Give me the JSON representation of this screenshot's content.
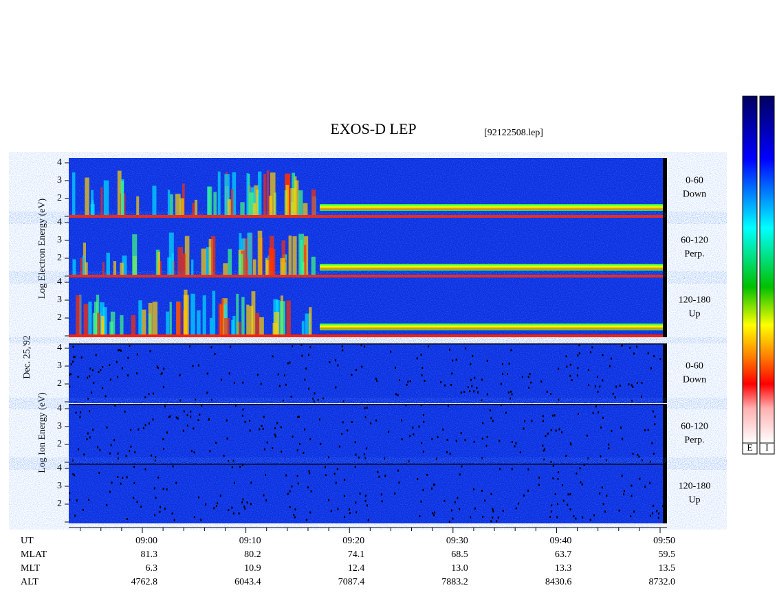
{
  "header": {
    "title": "EXOS-D LEP",
    "file": "[92122508.lep]"
  },
  "date": "Dec. 25,'92",
  "electron": {
    "axis_label": "Log   Electron   Energy  (eV)",
    "panels": [
      {
        "range": "0-60",
        "direction": "Down"
      },
      {
        "range": "60-120",
        "direction": "Perp."
      },
      {
        "range": "120-180",
        "direction": "Up"
      }
    ]
  },
  "ion": {
    "axis_label": "Log   Ion   Energy  (eV)",
    "panels": [
      {
        "range": "0-60",
        "direction": "Down"
      },
      {
        "range": "60-120",
        "direction": "Perp."
      },
      {
        "range": "120-180",
        "direction": "Up"
      }
    ]
  },
  "yticks": [
    2,
    3,
    4
  ],
  "ephemeris": {
    "row_labels": [
      "UT",
      "MLAT",
      "MLT",
      "ALT"
    ],
    "columns": [
      [
        "09:00",
        "81.3",
        "6.3",
        "4762.8"
      ],
      [
        "09:10",
        "80.2",
        "10.9",
        "6043.4"
      ],
      [
        "09:20",
        "74.1",
        "12.4",
        "7087.4"
      ],
      [
        "09:30",
        "68.5",
        "13.0",
        "7883.2"
      ],
      [
        "09:40",
        "63.7",
        "13.3",
        "8430.6"
      ],
      [
        "09:50",
        "59.5",
        "13.5",
        "8732.0"
      ]
    ]
  },
  "colorbar_labels": [
    "E",
    "I"
  ]
}
